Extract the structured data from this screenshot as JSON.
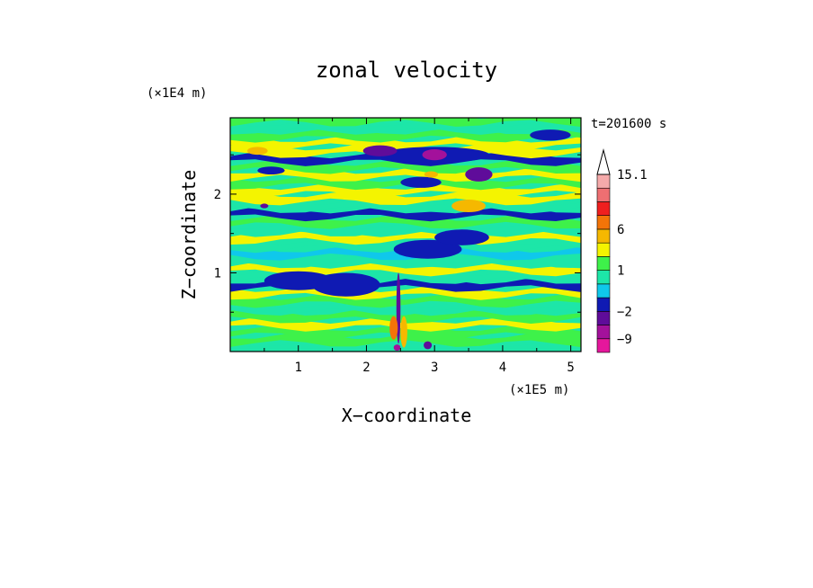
{
  "chart_data": {
    "type": "heatmap",
    "title": "zonal velocity",
    "xlabel": "X−coordinate",
    "ylabel": "Z−coordinate",
    "x_unit": "(×1E5 m)",
    "y_unit": "(×1E4 m)",
    "time_label": "t=201600 s",
    "xlim": [
      0,
      5.15
    ],
    "ylim": [
      0,
      2.97
    ],
    "x_ticks": [
      "1",
      "2",
      "3",
      "4",
      "5"
    ],
    "y_ticks": [
      "1",
      "2"
    ],
    "colorbar": {
      "levels": [
        -12,
        -9,
        -6,
        -2,
        -1,
        0,
        1,
        2,
        4,
        6,
        8,
        12,
        15.1
      ],
      "tick_labels": [
        "15.1",
        "6",
        "1",
        "−2",
        "−9"
      ],
      "colors": [
        "#e5179c",
        "#a3119b",
        "#5f0c9a",
        "#0f1ab3",
        "#0fc8eb",
        "#1de6a8",
        "#3ef14a",
        "#f4f400",
        "#f5b800",
        "#f37408",
        "#ef1f1f",
        "#ee6f72",
        "#f5aaaa"
      ],
      "extend_max": true
    },
    "bands": [
      {
        "z": 0.05,
        "u": 0.5
      },
      {
        "z": 0.15,
        "u": 1.5
      },
      {
        "z": 0.25,
        "u": 1.0
      },
      {
        "z": 0.35,
        "u": 2.5
      },
      {
        "z": 0.45,
        "u": 1.5
      },
      {
        "z": 0.55,
        "u": 0.5
      },
      {
        "z": 0.65,
        "u": 1.5
      },
      {
        "z": 0.75,
        "u": 2.5
      },
      {
        "z": 0.85,
        "u": -1.5
      },
      {
        "z": 0.95,
        "u": 0.5
      },
      {
        "z": 1.05,
        "u": 2.0
      },
      {
        "z": 1.15,
        "u": 0.5
      },
      {
        "z": 1.25,
        "u": -0.5
      },
      {
        "z": 1.35,
        "u": 0.5
      },
      {
        "z": 1.45,
        "u": 2.5
      },
      {
        "z": 1.55,
        "u": 0.5
      },
      {
        "z": 1.65,
        "u": 1.5
      },
      {
        "z": 1.75,
        "u": -1.5
      },
      {
        "z": 1.85,
        "u": 0.5
      },
      {
        "z": 1.95,
        "u": 3.0
      },
      {
        "z": 2.05,
        "u": 2.5
      },
      {
        "z": 2.15,
        "u": 1.5
      },
      {
        "z": 2.25,
        "u": 3.5
      },
      {
        "z": 2.35,
        "u": 1.0
      },
      {
        "z": 2.45,
        "u": -1.5
      },
      {
        "z": 2.55,
        "u": 2.0
      },
      {
        "z": 2.65,
        "u": 3.0
      },
      {
        "z": 2.75,
        "u": 1.5
      },
      {
        "z": 2.85,
        "u": 0.5
      },
      {
        "z": 2.95,
        "u": 1.5
      }
    ],
    "features": [
      {
        "x": 1.0,
        "z": 0.9,
        "u": -1.5,
        "rx": 0.5,
        "rz": 0.12
      },
      {
        "x": 1.7,
        "z": 0.85,
        "u": -1.5,
        "rx": 0.5,
        "rz": 0.15
      },
      {
        "x": 2.9,
        "z": 1.3,
        "u": -1.5,
        "rx": 0.5,
        "rz": 0.12
      },
      {
        "x": 3.4,
        "z": 1.45,
        "u": -1.5,
        "rx": 0.4,
        "rz": 0.1
      },
      {
        "x": 2.8,
        "z": 2.15,
        "u": -1.5,
        "rx": 0.3,
        "rz": 0.07
      },
      {
        "x": 0.6,
        "z": 2.3,
        "u": -1.5,
        "rx": 0.2,
        "rz": 0.05
      },
      {
        "x": 4.7,
        "z": 2.75,
        "u": -1.5,
        "rx": 0.3,
        "rz": 0.07
      },
      {
        "x": 3.0,
        "z": 2.5,
        "u": -1.5,
        "rx": 0.8,
        "rz": 0.1
      },
      {
        "x": 2.2,
        "z": 2.55,
        "u": -2.5,
        "rx": 0.25,
        "rz": 0.07
      },
      {
        "x": 3.0,
        "z": 2.5,
        "u": -7.0,
        "rx": 0.18,
        "rz": 0.07
      },
      {
        "x": 3.65,
        "z": 2.25,
        "u": -4.0,
        "rx": 0.2,
        "rz": 0.09
      },
      {
        "x": 0.5,
        "z": 1.85,
        "u": -4.0,
        "rx": 0.06,
        "rz": 0.03
      },
      {
        "x": 3.5,
        "z": 1.85,
        "u": 5.0,
        "rx": 0.25,
        "rz": 0.08
      },
      {
        "x": 0.4,
        "z": 2.55,
        "u": 5.0,
        "rx": 0.15,
        "rz": 0.05
      },
      {
        "x": 2.95,
        "z": 2.25,
        "u": 5.0,
        "rx": 0.1,
        "rz": 0.04
      },
      {
        "x": 2.47,
        "z": 0.55,
        "u": -5.0,
        "rx": 0.03,
        "rz": 0.45
      },
      {
        "x": 2.4,
        "z": 0.3,
        "u": 7.0,
        "rx": 0.06,
        "rz": 0.15
      },
      {
        "x": 2.55,
        "z": 0.25,
        "u": 5.0,
        "rx": 0.05,
        "rz": 0.2
      },
      {
        "x": 2.45,
        "z": 0.05,
        "u": -7.0,
        "rx": 0.05,
        "rz": 0.04
      },
      {
        "x": 2.9,
        "z": 0.08,
        "u": -4.0,
        "rx": 0.06,
        "rz": 0.05
      }
    ]
  }
}
